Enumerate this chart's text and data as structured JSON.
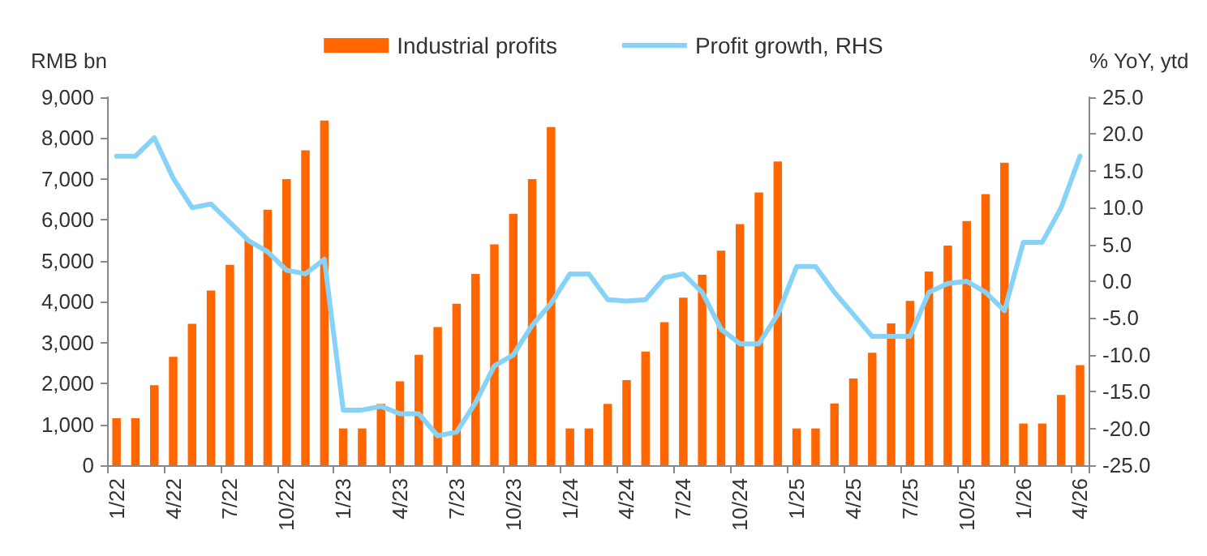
{
  "chart_data": {
    "type": "bar",
    "categories": [
      "1/22",
      null,
      null,
      "4/22",
      null,
      null,
      "7/22",
      null,
      null,
      "10/22",
      null,
      null,
      "1/23",
      null,
      null,
      "4/23",
      null,
      null,
      "7/23",
      null,
      null,
      "10/23",
      null,
      null,
      "1/24",
      null,
      null,
      "4/24",
      null,
      null,
      "7/24",
      null,
      null,
      "10/24",
      null,
      null,
      "1/25",
      null,
      null,
      "4/25",
      null,
      null,
      "7/25",
      null,
      null,
      "10/25",
      null,
      null,
      "1/26",
      null,
      null,
      "4/26"
    ],
    "series": [
      {
        "name": "Industrial profits",
        "color": "#ff6600",
        "values": [
          1150,
          1150,
          1960,
          2650,
          3460,
          4270,
          4900,
          5500,
          6250,
          7000,
          7700,
          8430,
          900,
          900,
          1500,
          2050,
          2700,
          3380,
          3950,
          4680,
          5400,
          6150,
          7000,
          8270,
          900,
          900,
          1500,
          2080,
          2780,
          3500,
          4100,
          4660,
          5250,
          5900,
          6670,
          7430,
          900,
          900,
          1510,
          2120,
          2750,
          3470,
          4020,
          4740,
          5370,
          5970,
          6630,
          7400,
          1020,
          1020,
          1720,
          2450
        ]
      },
      {
        "name": "Profit growth, RHS",
        "type": "line",
        "axis": "y2",
        "color": "#87d3f8",
        "values": [
          17,
          17,
          19.5,
          14,
          10,
          10.5,
          8,
          5.5,
          4,
          1.5,
          1,
          3,
          -17.5,
          -17.5,
          -17,
          -18,
          -18,
          -21,
          -20.5,
          -16.5,
          -11.5,
          -10,
          -6,
          -3,
          1,
          1,
          -2.5,
          -2.7,
          -2.5,
          0.5,
          1,
          -1.5,
          -6.5,
          -8.5,
          -8.5,
          -4.5,
          2,
          2,
          -1.5,
          -4.5,
          -7.5,
          -7.5,
          -7.5,
          -1.5,
          -0.3,
          0,
          -1.5,
          -4,
          5.3,
          5.3,
          10,
          17
        ]
      }
    ],
    "ylabel": "RMB bn",
    "y2label": "% YoY, ytd",
    "ylim": [
      0,
      9000
    ],
    "yticks": [
      {
        "value": 0,
        "label": "0"
      },
      {
        "value": 1000,
        "label": "1,000"
      },
      {
        "value": 2000,
        "label": "2,000"
      },
      {
        "value": 3000,
        "label": "3,000"
      },
      {
        "value": 4000,
        "label": "4,000"
      },
      {
        "value": 5000,
        "label": "5,000"
      },
      {
        "value": 6000,
        "label": "6,000"
      },
      {
        "value": 7000,
        "label": "7,000"
      },
      {
        "value": 8000,
        "label": "8,000"
      },
      {
        "value": 9000,
        "label": "9,000"
      }
    ],
    "y2lim": [
      -25,
      25
    ],
    "y2ticks": [
      {
        "value": -25,
        "label": "-25.0"
      },
      {
        "value": -20,
        "label": "-20.0"
      },
      {
        "value": -15,
        "label": "-15.0"
      },
      {
        "value": -10,
        "label": "-10.0"
      },
      {
        "value": -5,
        "label": "-5.0"
      },
      {
        "value": 0,
        "label": "0.0"
      },
      {
        "value": 5,
        "label": "5.0"
      },
      {
        "value": 10,
        "label": "10.0"
      },
      {
        "value": 15,
        "label": "15.0"
      },
      {
        "value": 20,
        "label": "20.0"
      },
      {
        "value": 25,
        "label": "25.0"
      }
    ],
    "grid": false,
    "legend": "top",
    "marker": "none",
    "line_style": "solid"
  }
}
